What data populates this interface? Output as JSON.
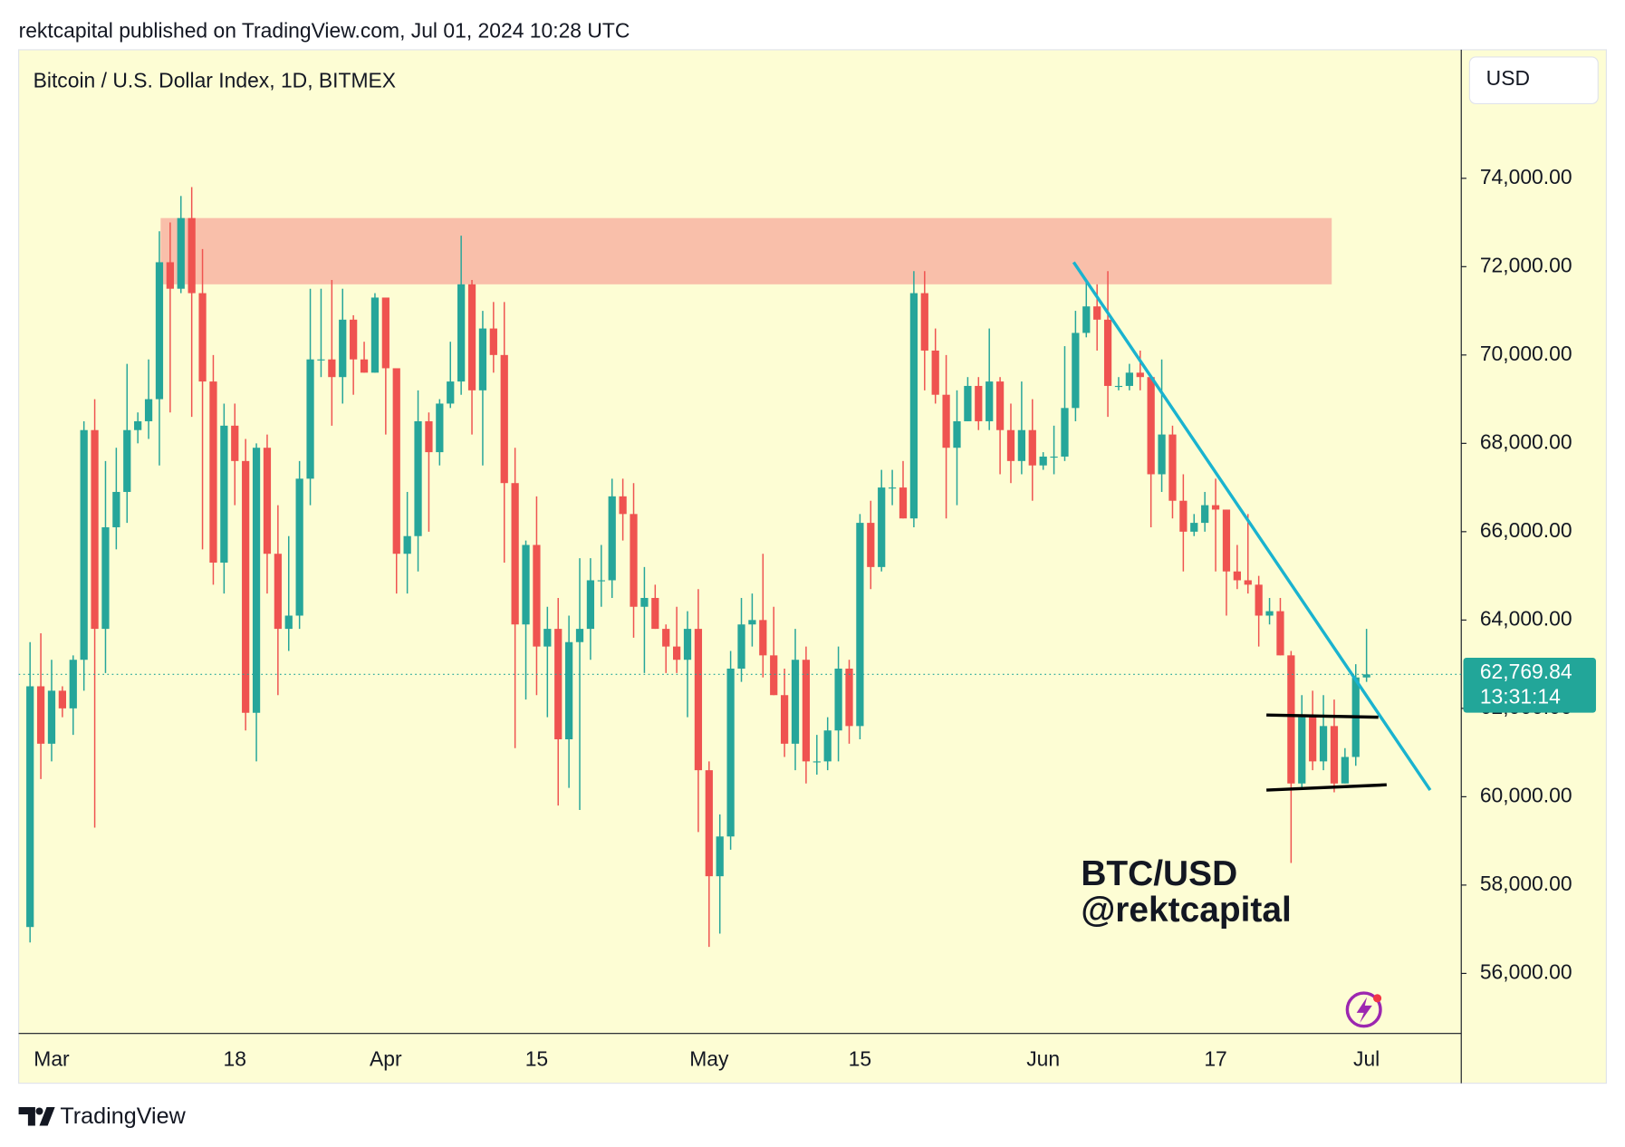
{
  "header": "rektcapital published on TradingView.com, Jul 01, 2024 10:28 UTC",
  "footer": "TradingView",
  "chart_data": {
    "type": "candlestick",
    "title": "Bitcoin / U.S. Dollar Index, 1D, BITMEX",
    "currency": "USD",
    "watermark": [
      "BTC/USD",
      "@rektcapital"
    ],
    "colors": {
      "up": "#26a69a",
      "down": "#ef5350"
    },
    "categories": [
      null,
      null,
      "Mar",
      null,
      null,
      null,
      null,
      null,
      null,
      null,
      null,
      null,
      null,
      null,
      null,
      null,
      null,
      null,
      null,
      "18",
      null,
      null,
      null,
      null,
      null,
      null,
      null,
      null,
      null,
      null,
      null,
      null,
      null,
      "Apr",
      null,
      null,
      null,
      null,
      null,
      null,
      null,
      null,
      null,
      null,
      null,
      null,
      null,
      "15",
      null,
      null,
      null,
      null,
      null,
      null,
      null,
      null,
      null,
      null,
      null,
      null,
      null,
      null,
      null,
      "May",
      null,
      null,
      null,
      null,
      null,
      null,
      null,
      null,
      null,
      null,
      null,
      null,
      null,
      "15",
      null,
      null,
      null,
      null,
      null,
      null,
      null,
      null,
      null,
      null,
      null,
      null,
      null,
      null,
      null,
      null,
      "Jun",
      null,
      null,
      null,
      null,
      null,
      null,
      null,
      null,
      null,
      null,
      null,
      null,
      null,
      null,
      null,
      "17",
      null,
      null,
      null,
      null,
      null,
      null,
      null,
      null,
      null,
      null,
      null,
      null,
      null,
      "Jul"
    ],
    "open": [
      57050,
      62500,
      61200,
      62400,
      62000,
      63100,
      68300,
      63800,
      66100,
      66900,
      68300,
      68500,
      69000,
      72100,
      71500,
      73100,
      71400,
      69400,
      65300,
      68400,
      67600,
      61900,
      67900,
      65500,
      63800,
      64100,
      67200,
      69900,
      69900,
      69500,
      70800,
      69900,
      69600,
      71300,
      69700,
      65500,
      65900,
      68500,
      67800,
      68900,
      69400,
      71600,
      69200,
      70600,
      70000,
      67100,
      63900,
      65700,
      63400,
      63800,
      61300,
      63500,
      63800,
      64900,
      64900,
      66800,
      66400,
      64300,
      64500,
      63800,
      63400,
      63100,
      63800,
      60600,
      58200,
      59100,
      62900,
      63900,
      64000,
      63200,
      62300,
      61200,
      63100,
      60800,
      60800,
      61500,
      62900,
      61600,
      66200,
      65200,
      67000,
      67000,
      66300,
      71400,
      70100,
      69100,
      67900,
      68500,
      69300,
      68500,
      69400,
      68300,
      67600,
      68300,
      67500,
      67700,
      67700,
      68800,
      70500,
      71100,
      70800,
      69300,
      69300,
      69600,
      69500,
      67300,
      68200,
      66700,
      66000,
      66200,
      66600,
      66500,
      65100,
      64900,
      64800,
      64100,
      64200,
      63200,
      60300,
      61800,
      60800,
      61600,
      60300,
      60900,
      62700
    ],
    "high": [
      63500,
      63700,
      63100,
      62500,
      63200,
      68500,
      69000,
      67600,
      67900,
      69800,
      68700,
      69900,
      72800,
      73000,
      73600,
      73800,
      72400,
      70000,
      68900,
      68900,
      68100,
      68000,
      68200,
      66600,
      65900,
      67600,
      71500,
      71500,
      71700,
      71500,
      70900,
      70300,
      71400,
      71300,
      69700,
      66900,
      69200,
      68700,
      69000,
      70300,
      72700,
      71700,
      71000,
      71200,
      71200,
      67900,
      65800,
      66800,
      64300,
      64500,
      64100,
      65400,
      65400,
      65700,
      67200,
      67200,
      67100,
      65200,
      64800,
      63900,
      64300,
      64200,
      64700,
      60800,
      59600,
      63300,
      64500,
      64600,
      65500,
      64300,
      62900,
      63800,
      63400,
      61400,
      61800,
      63400,
      63100,
      66400,
      66700,
      67400,
      67400,
      67600,
      71900,
      71900,
      70600,
      70000,
      69200,
      69500,
      69500,
      70600,
      69500,
      68900,
      69400,
      69000,
      67800,
      68400,
      70200,
      71000,
      71700,
      71600,
      71900,
      69500,
      69800,
      70100,
      69500,
      69900,
      68400,
      67300,
      66400,
      66900,
      67200,
      66500,
      65700,
      66400,
      65000,
      64500,
      64500,
      63300,
      62300,
      62400,
      62300,
      62200,
      61100,
      63000,
      63800
    ],
    "low": [
      56700,
      60400,
      60800,
      61800,
      61400,
      62400,
      59300,
      62800,
      65600,
      66200,
      68000,
      68100,
      67500,
      68700,
      71400,
      68600,
      65600,
      64800,
      64600,
      66600,
      61500,
      60800,
      64600,
      62300,
      63300,
      63800,
      66600,
      69500,
      68400,
      68900,
      69100,
      69600,
      69600,
      68200,
      64600,
      64600,
      65100,
      66000,
      67500,
      68800,
      69100,
      68200,
      67500,
      69600,
      65300,
      61100,
      62200,
      62300,
      61800,
      59800,
      60200,
      59700,
      63100,
      64300,
      64500,
      65800,
      63600,
      62800,
      63800,
      62800,
      62800,
      61800,
      59200,
      56600,
      56900,
      58800,
      62600,
      63400,
      62700,
      62300,
      60900,
      60600,
      60300,
      60500,
      60600,
      60800,
      61200,
      61300,
      64700,
      65100,
      66600,
      66300,
      66100,
      69200,
      68900,
      66300,
      66600,
      68500,
      68300,
      68300,
      67300,
      67100,
      67300,
      66700,
      67400,
      67300,
      67600,
      68500,
      70400,
      70100,
      68600,
      69200,
      69200,
      69200,
      66100,
      66900,
      66300,
      65100,
      65900,
      66000,
      65100,
      64100,
      64700,
      64600,
      63400,
      63900,
      63200,
      58500,
      60200,
      60600,
      60600,
      60100,
      60300,
      60700,
      62600
    ],
    "close": [
      62500,
      61200,
      62400,
      62000,
      63100,
      68300,
      63800,
      66100,
      66900,
      68300,
      68500,
      69000,
      72100,
      71500,
      73100,
      71400,
      69400,
      65300,
      68400,
      67600,
      61900,
      67900,
      65500,
      63800,
      64100,
      67200,
      69900,
      69900,
      69500,
      70800,
      69900,
      69600,
      71300,
      69700,
      65500,
      65900,
      68500,
      67800,
      68900,
      69400,
      71600,
      69200,
      70600,
      70000,
      67100,
      63900,
      65700,
      63400,
      63800,
      61300,
      63500,
      63800,
      64900,
      64900,
      66800,
      66400,
      64300,
      64500,
      63800,
      63400,
      63100,
      63800,
      60600,
      58200,
      59100,
      62900,
      63900,
      64000,
      63200,
      62300,
      61200,
      63100,
      60800,
      60800,
      61500,
      62900,
      61600,
      66200,
      65200,
      67000,
      67000,
      66300,
      71400,
      70100,
      69100,
      67900,
      68500,
      69300,
      68500,
      69400,
      68300,
      67600,
      68300,
      67500,
      67700,
      67700,
      68800,
      70500,
      71100,
      70800,
      69300,
      69300,
      69600,
      69500,
      67300,
      68200,
      66700,
      66000,
      66200,
      66600,
      66500,
      65100,
      64900,
      64800,
      64100,
      64200,
      63200,
      60300,
      61800,
      60800,
      61600,
      60300,
      60900,
      62700,
      62769.84
    ],
    "ylim": [
      54640,
      76910
    ],
    "yticks": [
      {
        "value": 56000,
        "label": "56,000.00"
      },
      {
        "value": 58000,
        "label": "58,000.00"
      },
      {
        "value": 60000,
        "label": "60,000.00"
      },
      {
        "value": 62000,
        "label": "62,000.00"
      },
      {
        "value": 64000,
        "label": "64,000.00"
      },
      {
        "value": 66000,
        "label": "66,000.00"
      },
      {
        "value": 68000,
        "label": "68,000.00"
      },
      {
        "value": 70000,
        "label": "70,000.00"
      },
      {
        "value": 72000,
        "label": "72,000.00"
      },
      {
        "value": 74000,
        "label": "74,000.00"
      }
    ],
    "last_price": {
      "value": 62769.84,
      "label": "62,769.84",
      "countdown": "13:31:14",
      "color": "#22a699"
    },
    "zone": {
      "range": [
        71600,
        73100
      ],
      "color": "#f9bfaa"
    },
    "trendline": {
      "values": [
        72100,
        60150
      ],
      "color": "#1ab3cf"
    },
    "channel": [
      {
        "values": [
          61850,
          61800
        ]
      },
      {
        "values": [
          60150,
          60270
        ]
      }
    ]
  }
}
